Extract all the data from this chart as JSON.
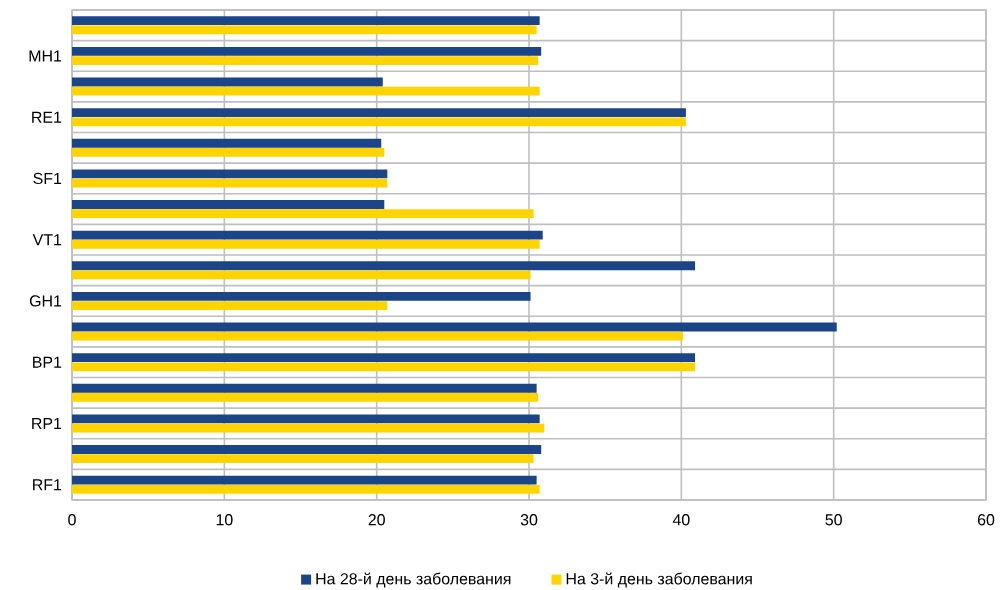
{
  "chart_data": {
    "type": "bar",
    "orientation": "horizontal",
    "categories": [
      null,
      "MH1",
      null,
      "RE1",
      null,
      "SF1",
      null,
      "VT1",
      null,
      "GH1",
      null,
      "BP1",
      null,
      "RP1",
      null,
      "RF1"
    ],
    "series": [
      {
        "name": "На 28-й день заболевания",
        "color": "#1b4586",
        "values": [
          30.7,
          30.8,
          20.4,
          40.3,
          20.3,
          20.7,
          20.5,
          30.9,
          40.9,
          30.1,
          50.2,
          40.9,
          30.5,
          30.7,
          30.8,
          30.5
        ]
      },
      {
        "name": "На 3-й день заболевания",
        "color": "#ffd400",
        "values": [
          30.5,
          30.6,
          30.7,
          40.3,
          20.5,
          20.7,
          30.3,
          30.7,
          30.1,
          20.7,
          40.1,
          40.9,
          30.6,
          31.0,
          30.3,
          30.7
        ]
      }
    ],
    "xlim": [
      0,
      60
    ],
    "xticks": [
      0,
      10,
      20,
      30,
      40,
      50,
      60
    ],
    "grid": true,
    "legend": "bottom"
  }
}
